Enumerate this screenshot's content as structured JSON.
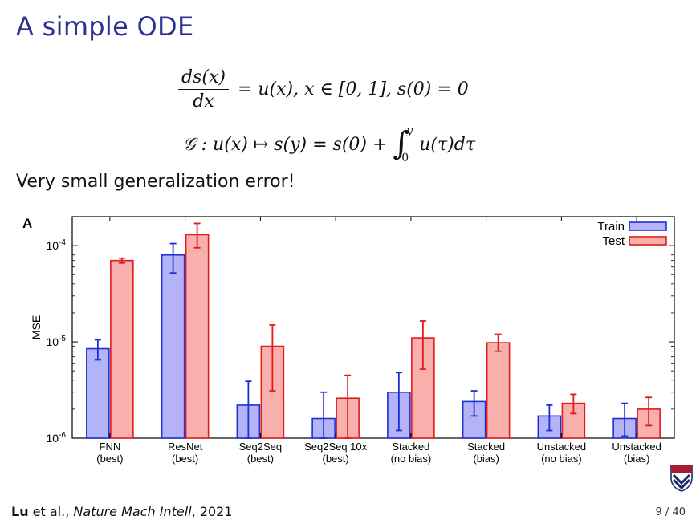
{
  "slide": {
    "title": "A simple ODE",
    "subtitle": "Very small generalization error!",
    "equation1": {
      "num": "ds(x)",
      "den": "dx",
      "rhs": "= u(x),    x ∈ [0, 1],    s(0) = 0"
    },
    "equation2": {
      "lhs": "𝒢 : u(x) ↦ s(y) = s(0) + ",
      "int_upper": "y",
      "int_lower": "0",
      "integrand": "u(τ)dτ"
    },
    "footer": {
      "author": "Lu",
      "rest": " et al., ",
      "journal": "Nature Mach Intell",
      "year": ", 2021"
    },
    "page": "9 / 40"
  },
  "chart_data": {
    "type": "bar",
    "panel_label": "A",
    "ylabel": "MSE",
    "yscale": "log",
    "ylim": [
      1e-06,
      0.0002
    ],
    "yticks": [
      1e-06,
      1e-05,
      0.0001
    ],
    "ytick_labels": [
      "10-6",
      "10-5",
      "10-4"
    ],
    "categories": [
      [
        "FNN",
        "(best)"
      ],
      [
        "ResNet",
        "(best)"
      ],
      [
        "Seq2Seq",
        "(best)"
      ],
      [
        "Seq2Seq 10x",
        "(best)"
      ],
      [
        "Stacked",
        "(no bias)"
      ],
      [
        "Stacked",
        "(bias)"
      ],
      [
        "Unstacked",
        "(no bias)"
      ],
      [
        "Unstacked",
        "(bias)"
      ]
    ],
    "legend_position": "top-right",
    "series": [
      {
        "name": "Train",
        "fill": "#b3b3f5",
        "stroke": "#1f2fd6",
        "values": [
          8.5e-06,
          8e-05,
          2.2e-06,
          1.6e-06,
          3e-06,
          2.4e-06,
          1.7e-06,
          1.6e-06
        ],
        "err_low": [
          6.5e-06,
          5.2e-05,
          1e-06,
          1e-06,
          1.2e-06,
          1.7e-06,
          1.2e-06,
          1.05e-06
        ],
        "err_high": [
          1.05e-05,
          0.000105,
          3.9e-06,
          3e-06,
          4.8e-06,
          3.1e-06,
          2.2e-06,
          2.3e-06
        ]
      },
      {
        "name": "Test",
        "fill": "#f7b0ac",
        "stroke": "#e41a1a",
        "values": [
          7e-05,
          0.00013,
          9e-06,
          2.6e-06,
          1.1e-05,
          9.8e-06,
          2.3e-06,
          2e-06
        ],
        "err_low": [
          6.6e-05,
          9.5e-05,
          3.1e-06,
          1e-06,
          5.2e-06,
          8e-06,
          1.8e-06,
          1.35e-06
        ],
        "err_high": [
          7.4e-05,
          0.00017,
          1.5e-05,
          4.5e-06,
          1.65e-05,
          1.2e-05,
          2.85e-06,
          2.65e-06
        ]
      }
    ]
  }
}
